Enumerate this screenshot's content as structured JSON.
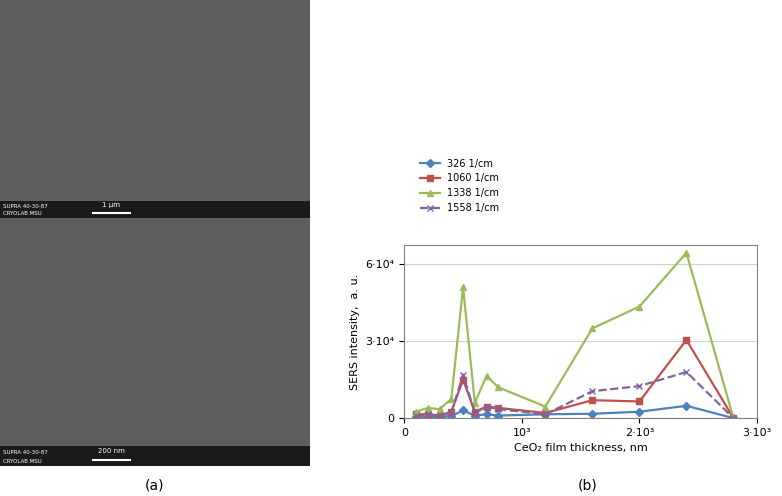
{
  "panel_labels": [
    "(a)",
    "(b)"
  ],
  "images": [
    {
      "scale_bar": "1 μm",
      "info": [
        "SUPRA 40-30-87",
        "CRYOLAB MSU"
      ]
    },
    {
      "scale_bar": "200 nm",
      "info": [
        "SUPRA 40-30-87",
        "CRYOLAB MSU"
      ]
    }
  ],
  "chart_data": {
    "type": "line",
    "x_label": "CeO₂ film thickness, nm",
    "y_label": "SERS intensity,  a. u.",
    "x": [
      100,
      200,
      300,
      400,
      500,
      600,
      700,
      800,
      1200,
      1600,
      2000,
      2400,
      2800
    ],
    "series": [
      {
        "name": "326 1/cm",
        "color": "#4f81bd",
        "marker": "diamond",
        "line_style": "solid",
        "values": [
          500,
          500,
          500,
          800,
          3000,
          1000,
          1500,
          1000,
          1500,
          1700,
          2500,
          4800,
          0
        ]
      },
      {
        "name": "1060 1/cm",
        "color": "#c0504d",
        "marker": "square",
        "line_style": "solid",
        "values": [
          1500,
          1500,
          1000,
          2500,
          15000,
          2500,
          4500,
          4000,
          2000,
          7000,
          6500,
          30500,
          0
        ]
      },
      {
        "name": "1338 1/cm",
        "color": "#9bbb59",
        "marker": "triangle",
        "line_style": "solid",
        "values": [
          2500,
          4000,
          3500,
          7500,
          51000,
          6000,
          16500,
          12000,
          4500,
          35000,
          43500,
          64500,
          0
        ]
      },
      {
        "name": "1558 1/cm",
        "color": "#8064a2",
        "marker": "x",
        "line_style": "dashed",
        "values": [
          1000,
          1500,
          1000,
          2000,
          17000,
          2000,
          4500,
          3500,
          1500,
          10500,
          12500,
          18000,
          0
        ]
      }
    ],
    "xlim": [
      0,
      3000
    ],
    "xticks": [
      0,
      {
        "value": 1000,
        "label": "10³"
      },
      {
        "value": 2000,
        "label": "2·10³"
      },
      {
        "value": 3000,
        "label": "3·10³"
      }
    ],
    "ylim": [
      0,
      67500
    ],
    "yticks": [
      0,
      {
        "value": 30000,
        "label": "3·10⁴"
      },
      {
        "value": 60000,
        "label": "6·10⁴"
      }
    ],
    "grid": true,
    "legend": "upper left"
  }
}
